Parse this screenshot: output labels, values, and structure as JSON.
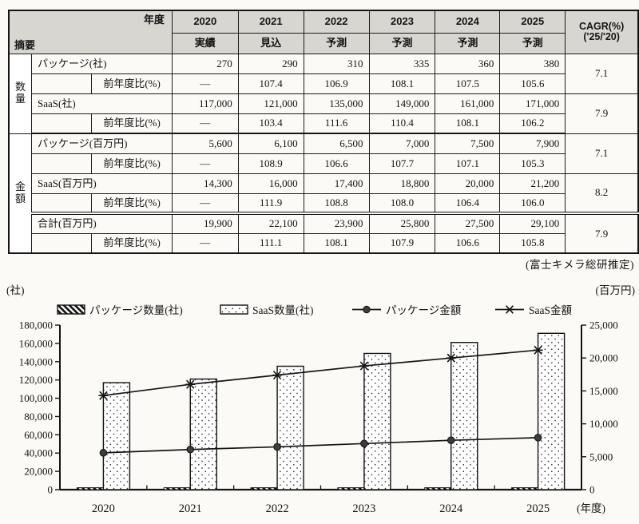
{
  "table": {
    "corner": {
      "top_right": "年度",
      "bottom_left": "摘要"
    },
    "year_columns": [
      {
        "year": "2020",
        "status": "実績"
      },
      {
        "year": "2021",
        "status": "見込"
      },
      {
        "year": "2022",
        "status": "予測"
      },
      {
        "year": "2023",
        "status": "予測"
      },
      {
        "year": "2024",
        "status": "予測"
      },
      {
        "year": "2025",
        "status": "予測"
      }
    ],
    "cagr_header": [
      "CAGR(%)",
      "('25/'20)"
    ],
    "ratio_label": "前年度比(%)",
    "groups": [
      {
        "label": "数量",
        "items": [
          {
            "label": "パッケージ(社)",
            "values": [
              "270",
              "290",
              "310",
              "335",
              "360",
              "380"
            ],
            "ratios": [
              "—",
              "107.4",
              "106.9",
              "108.1",
              "107.5",
              "105.6"
            ],
            "cagr": "7.1",
            "total": false
          },
          {
            "label": "SaaS(社)",
            "values": [
              "117,000",
              "121,000",
              "135,000",
              "149,000",
              "161,000",
              "171,000"
            ],
            "ratios": [
              "—",
              "103.4",
              "111.6",
              "110.4",
              "108.1",
              "106.2"
            ],
            "cagr": "7.9",
            "total": false
          }
        ]
      },
      {
        "label": "金額",
        "items": [
          {
            "label": "パッケージ(百万円)",
            "values": [
              "5,600",
              "6,100",
              "6,500",
              "7,000",
              "7,500",
              "7,900"
            ],
            "ratios": [
              "—",
              "108.9",
              "106.6",
              "107.7",
              "107.1",
              "105.3"
            ],
            "cagr": "7.1",
            "total": false
          },
          {
            "label": "SaaS(百万円)",
            "values": [
              "14,300",
              "16,000",
              "17,400",
              "18,800",
              "20,000",
              "21,200"
            ],
            "ratios": [
              "—",
              "111.9",
              "108.8",
              "108.0",
              "106.4",
              "106.0"
            ],
            "cagr": "8.2",
            "total": false
          },
          {
            "label": "合計(百万円)",
            "values": [
              "19,900",
              "22,100",
              "23,900",
              "25,800",
              "27,500",
              "29,100"
            ],
            "ratios": [
              "—",
              "111.1",
              "108.1",
              "107.9",
              "106.6",
              "105.8"
            ],
            "cagr": "7.9",
            "total": true
          }
        ]
      }
    ],
    "note": "(富士キメラ総研推定)"
  },
  "chart_data": {
    "type": "bar+line combo",
    "categories": [
      "2020",
      "2021",
      "2022",
      "2023",
      "2024",
      "2025"
    ],
    "left_axis": {
      "unit": "(社)",
      "min": 0,
      "max": 180000,
      "step": 20000
    },
    "right_axis": {
      "unit": "(百万円)",
      "min": 0,
      "max": 25000,
      "step": 5000
    },
    "xlabel": "(年度)",
    "grid": false,
    "legend_position": "top",
    "series": [
      {
        "name": "パッケージ数量(社)",
        "type": "bar",
        "axis": "left",
        "pattern": "hatch",
        "values": [
          270,
          290,
          310,
          335,
          360,
          380
        ]
      },
      {
        "name": "SaaS数量(社)",
        "type": "bar",
        "axis": "left",
        "pattern": "dots",
        "values": [
          117000,
          121000,
          135000,
          149000,
          161000,
          171000
        ]
      },
      {
        "name": "パッケージ金額",
        "type": "line",
        "axis": "right",
        "marker": "circle",
        "values": [
          5600,
          6100,
          6500,
          7000,
          7500,
          7900
        ]
      },
      {
        "name": "SaaS金額",
        "type": "line",
        "axis": "right",
        "marker": "asterisk",
        "values": [
          14300,
          16000,
          17400,
          18800,
          20000,
          21200
        ]
      }
    ],
    "colors": {
      "ink": "#141414",
      "header_bg": "#d8d6d0",
      "paper": "#fbfaf6"
    }
  }
}
